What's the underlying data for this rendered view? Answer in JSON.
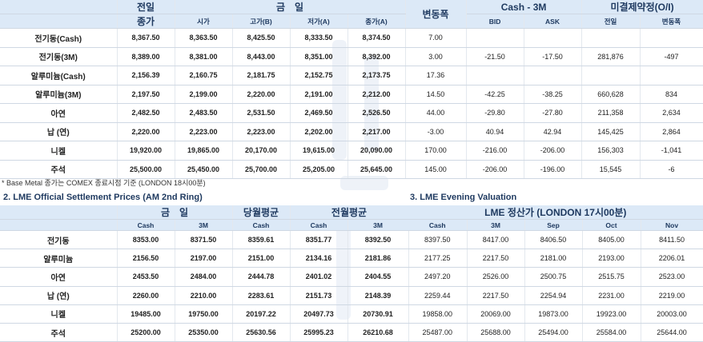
{
  "table1": {
    "headers": {
      "prev_line1": "전일",
      "prev_line2": "종가",
      "today": "금　일",
      "today_sub": [
        "시가",
        "고가(B)",
        "저가(A)",
        "종가(A)"
      ],
      "change": "변동폭",
      "cash3m": "Cash - 3M",
      "cash3m_sub": [
        "BID",
        "ASK"
      ],
      "oi": "미결제약정(O/I)",
      "oi_sub": [
        "전일",
        "변동폭"
      ]
    },
    "rows": [
      {
        "label": "전기동(Cash)",
        "prev": "8,367.50",
        "open": "8,363.50",
        "high": "8,425.50",
        "low": "8,333.50",
        "close": "8,374.50",
        "chg": "7.00",
        "bid": "",
        "ask": "",
        "oi": "",
        "oi_chg": ""
      },
      {
        "label": "전기동(3M)",
        "prev": "8,389.00",
        "open": "8,381.00",
        "high": "8,443.00",
        "low": "8,351.00",
        "close": "8,392.00",
        "chg": "3.00",
        "bid": "-21.50",
        "ask": "-17.50",
        "oi": "281,876",
        "oi_chg": "-497"
      },
      {
        "label": "알루미늄(Cash)",
        "prev": "2,156.39",
        "open": "2,160.75",
        "high": "2,181.75",
        "low": "2,152.75",
        "close": "2,173.75",
        "chg": "17.36",
        "bid": "",
        "ask": "",
        "oi": "",
        "oi_chg": ""
      },
      {
        "label": "알루미늄(3M)",
        "prev": "2,197.50",
        "open": "2,199.00",
        "high": "2,220.00",
        "low": "2,191.00",
        "close": "2,212.00",
        "chg": "14.50",
        "bid": "-42.25",
        "ask": "-38.25",
        "oi": "660,628",
        "oi_chg": "834"
      },
      {
        "label": "아연",
        "prev": "2,482.50",
        "open": "2,483.50",
        "high": "2,531.50",
        "low": "2,469.50",
        "close": "2,526.50",
        "chg": "44.00",
        "bid": "-29.80",
        "ask": "-27.80",
        "oi": "211,358",
        "oi_chg": "2,634"
      },
      {
        "label": "납 (연)",
        "prev": "2,220.00",
        "open": "2,223.00",
        "high": "2,223.00",
        "low": "2,202.00",
        "close": "2,217.00",
        "chg": "-3.00",
        "bid": "40.94",
        "ask": "42.94",
        "oi": "145,425",
        "oi_chg": "2,864"
      },
      {
        "label": "니켈",
        "prev": "19,920.00",
        "open": "19,865.00",
        "high": "20,170.00",
        "low": "19,615.00",
        "close": "20,090.00",
        "chg": "170.00",
        "bid": "-216.00",
        "ask": "-206.00",
        "oi": "156,303",
        "oi_chg": "-1,041"
      },
      {
        "label": "주석",
        "prev": "25,500.00",
        "open": "25,450.00",
        "high": "25,700.00",
        "low": "25,205.00",
        "close": "25,645.00",
        "chg": "145.00",
        "bid": "-206.00",
        "ask": "-196.00",
        "oi": "15,545",
        "oi_chg": "-6"
      }
    ]
  },
  "note": "* Base Metal 종가는 COMEX 종료시점 기준 (LONDON 18시00분)",
  "section2_title": "2. LME Official Settlement Prices (AM 2nd Ring)",
  "section3_title": "3. LME Evening Valuation",
  "table2": {
    "headers": {
      "today": "금　일",
      "today_sub": [
        "Cash",
        "3M"
      ],
      "cur_avg": "당월평균",
      "cur_avg_sub": "Cash",
      "prev_avg": "전월평균",
      "prev_avg_sub": [
        "Cash",
        "3M"
      ]
    },
    "rows": [
      {
        "label": "전기동",
        "cash": "8353.00",
        "m3": "8371.50",
        "cur": "8359.61",
        "pcash": "8351.77",
        "pm3": "8392.50"
      },
      {
        "label": "알루미늄",
        "cash": "2156.50",
        "m3": "2197.00",
        "cur": "2151.00",
        "pcash": "2134.16",
        "pm3": "2181.86"
      },
      {
        "label": "아연",
        "cash": "2453.50",
        "m3": "2484.00",
        "cur": "2444.78",
        "pcash": "2401.02",
        "pm3": "2404.55"
      },
      {
        "label": "납 (연)",
        "cash": "2260.00",
        "m3": "2210.00",
        "cur": "2283.61",
        "pcash": "2151.73",
        "pm3": "2148.39"
      },
      {
        "label": "니켈",
        "cash": "19485.00",
        "m3": "19750.00",
        "cur": "20197.22",
        "pcash": "20497.73",
        "pm3": "20730.91"
      },
      {
        "label": "주석",
        "cash": "25200.00",
        "m3": "25350.00",
        "cur": "25630.56",
        "pcash": "25995.23",
        "pm3": "26210.68"
      }
    ]
  },
  "table3": {
    "header": "LME 정산가 (LONDON 17시00분)",
    "sub": [
      "Cash",
      "3M",
      "Sep",
      "Oct",
      "Nov"
    ],
    "rows": [
      [
        "8397.50",
        "8417.00",
        "8406.50",
        "8405.00",
        "8411.50"
      ],
      [
        "2177.25",
        "2217.50",
        "2181.00",
        "2193.00",
        "2206.01"
      ],
      [
        "2497.20",
        "2526.00",
        "2500.75",
        "2515.75",
        "2523.00"
      ],
      [
        "2259.44",
        "2217.50",
        "2254.94",
        "2231.00",
        "2219.00"
      ],
      [
        "19858.00",
        "20069.00",
        "19873.00",
        "19923.00",
        "20003.00"
      ],
      [
        "25487.00",
        "25688.00",
        "25494.00",
        "25584.00",
        "25644.00"
      ]
    ]
  },
  "colors": {
    "header_bg": "#dce9f7",
    "header_text": "#1f3a60"
  }
}
